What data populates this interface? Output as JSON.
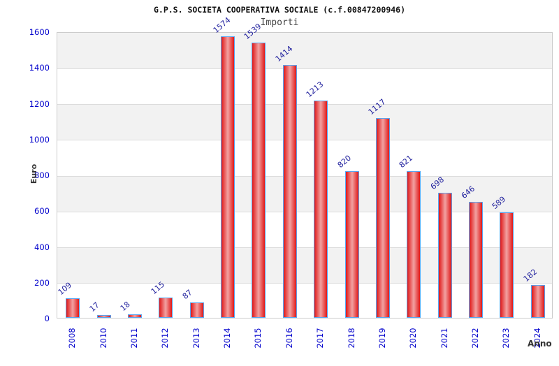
{
  "chart_data": {
    "type": "bar",
    "title": "G.P.S. SOCIETA COOPERATIVA SOCIALE (c.f.00847200946)",
    "subtitle": "Importi",
    "xlabel": "Anno",
    "ylabel": "Euro",
    "categories": [
      "2008",
      "2010",
      "2011",
      "2012",
      "2013",
      "2014",
      "2015",
      "2016",
      "2017",
      "2018",
      "2019",
      "2020",
      "2021",
      "2022",
      "2023",
      "2024"
    ],
    "values": [
      109,
      17,
      18,
      115,
      87,
      1574,
      1539,
      1414,
      1213,
      820,
      1117,
      821,
      698,
      646,
      589,
      182
    ],
    "ylim": [
      0,
      1600
    ],
    "ytick_step": 200,
    "yticks": [
      0,
      200,
      400,
      600,
      800,
      1000,
      1200,
      1400,
      1600
    ],
    "grid": "horizontal-bands",
    "legend": "none",
    "colors": {
      "bar_fill_edge": "#e01818",
      "bar_fill_center": "#f2a2a2",
      "bar_border": "#58a6f2",
      "value_label": "#1c1c9c",
      "axis_tick_label": "#0000cc",
      "band_shaded": "#f2f2f2",
      "band_plain": "#ffffff",
      "grid_line": "#dcdcdc",
      "plot_border": "#cccccc",
      "title_color": "#111111",
      "subtitle_color": "#444444",
      "axis_title_color": "#333333"
    }
  }
}
